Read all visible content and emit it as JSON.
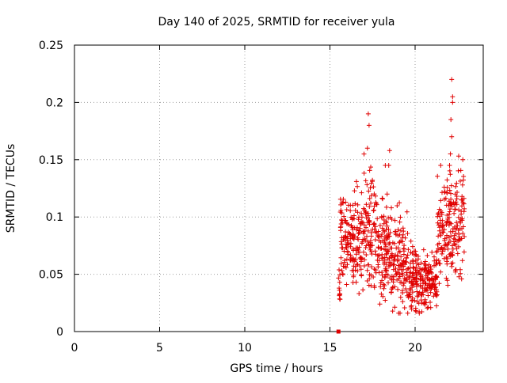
{
  "chart_data": {
    "type": "scatter",
    "title": "Day 140 of 2025, SRMTID for receiver yula",
    "xlabel": "GPS time / hours",
    "ylabel": "SRMTID / TECUs",
    "xlim": [
      0,
      24
    ],
    "ylim": [
      0,
      0.25
    ],
    "xticks": [
      0,
      5,
      10,
      15,
      20
    ],
    "xtick_labels": [
      "0",
      "5",
      "10",
      "15",
      "20"
    ],
    "yticks": [
      0,
      0.05,
      0.1,
      0.15,
      0.2,
      0.25
    ],
    "ytick_labels": [
      "0",
      "0.05",
      "0.1",
      "0.15",
      "0.2",
      "0.25"
    ],
    "grid": true,
    "marker": "plus",
    "marker_color": "#e00000",
    "series": [
      {
        "name": "SRMTID",
        "segments": [
          {
            "x0": 15.5,
            "x1": 15.6,
            "ymin": 0.02,
            "ymax": 0.06,
            "ybase": 0.04
          },
          {
            "x0": 15.6,
            "x1": 16.2,
            "ymin": 0.04,
            "ymax": 0.11,
            "ybase": 0.08
          },
          {
            "x0": 16.2,
            "x1": 17.0,
            "ymin": 0.04,
            "ymax": 0.13,
            "ybase": 0.08
          },
          {
            "x0": 17.0,
            "x1": 17.6,
            "ymin": 0.05,
            "ymax": 0.15,
            "ybase": 0.09
          },
          {
            "x0": 17.6,
            "x1": 18.6,
            "ymin": 0.03,
            "ymax": 0.12,
            "ybase": 0.075
          },
          {
            "x0": 18.6,
            "x1": 19.6,
            "ymin": 0.02,
            "ymax": 0.11,
            "ybase": 0.06
          },
          {
            "x0": 19.6,
            "x1": 20.6,
            "ymin": 0.02,
            "ymax": 0.08,
            "ybase": 0.045
          },
          {
            "x0": 20.6,
            "x1": 21.3,
            "ymin": 0.025,
            "ymax": 0.07,
            "ybase": 0.045
          },
          {
            "x0": 21.3,
            "x1": 21.9,
            "ymin": 0.05,
            "ymax": 0.14,
            "ybase": 0.09
          },
          {
            "x0": 21.9,
            "x1": 22.9,
            "ymin": 0.05,
            "ymax": 0.15,
            "ybase": 0.1
          }
        ],
        "n_points_approx": 900,
        "highlights": [
          {
            "x": 17.25,
            "y": 0.19
          },
          {
            "x": 17.3,
            "y": 0.18
          },
          {
            "x": 17.0,
            "y": 0.155
          },
          {
            "x": 17.2,
            "y": 0.16
          },
          {
            "x": 18.45,
            "y": 0.145
          },
          {
            "x": 18.5,
            "y": 0.158
          },
          {
            "x": 22.15,
            "y": 0.22
          },
          {
            "x": 22.2,
            "y": 0.205
          },
          {
            "x": 22.2,
            "y": 0.2
          },
          {
            "x": 22.1,
            "y": 0.185
          },
          {
            "x": 22.15,
            "y": 0.17
          },
          {
            "x": 22.8,
            "y": 0.15
          },
          {
            "x": 21.5,
            "y": 0.145
          },
          {
            "x": 18.25,
            "y": 0.145
          }
        ],
        "marker_at_zero": {
          "x": 15.5,
          "y": 0.0
        }
      }
    ]
  }
}
